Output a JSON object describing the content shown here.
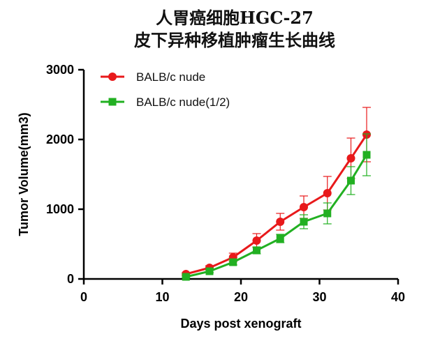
{
  "chart_data": {
    "type": "line",
    "title": [
      "人胃癌细胞HGC-27",
      "皮下异种移植肿瘤生长曲线"
    ],
    "xlabel": "Days post xenograft",
    "ylabel": "Tumor Volume(mm3)",
    "xlim": [
      0,
      40
    ],
    "ylim": [
      0,
      3000
    ],
    "xticks": [
      0,
      10,
      20,
      30,
      40
    ],
    "yticks": [
      0,
      1000,
      2000,
      3000
    ],
    "grid": false,
    "legend_position": "top-left",
    "x": [
      13,
      16,
      19,
      22,
      25,
      28,
      31,
      34,
      36
    ],
    "series": [
      {
        "name": "BALB/c nude",
        "marker": "circle",
        "color": "#e8191b",
        "values": [
          70,
          160,
          310,
          550,
          820,
          1030,
          1230,
          1730,
          2070
        ],
        "error": [
          20,
          30,
          60,
          100,
          120,
          160,
          240,
          290,
          390
        ]
      },
      {
        "name": "BALB/c nude(1/2)",
        "marker": "square",
        "color": "#22b022",
        "values": [
          30,
          110,
          240,
          410,
          580,
          820,
          940,
          1410,
          1780
        ],
        "error": [
          10,
          20,
          40,
          50,
          60,
          100,
          150,
          200,
          300
        ]
      }
    ]
  }
}
